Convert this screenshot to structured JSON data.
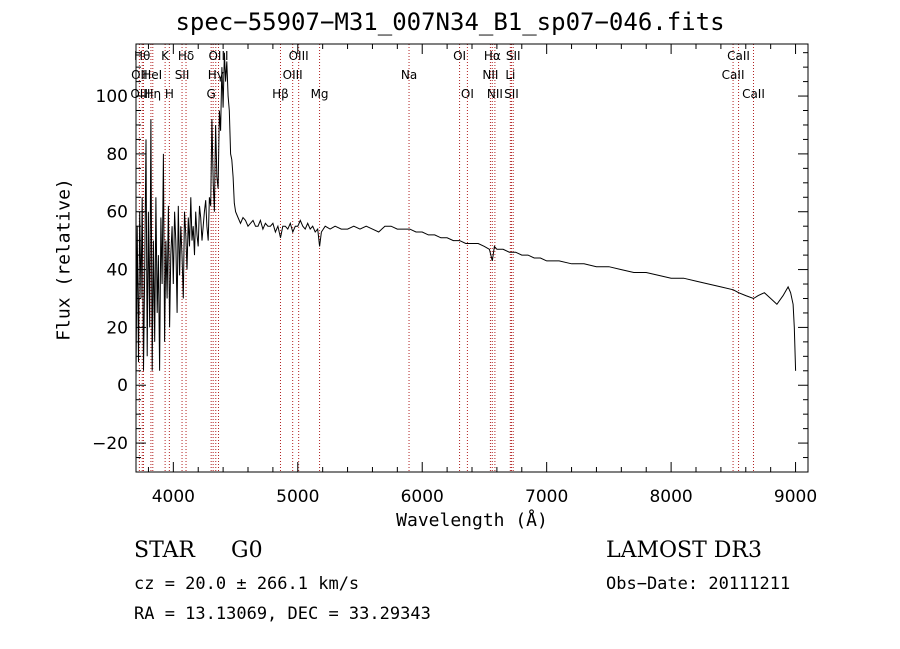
{
  "chart_data": {
    "type": "line",
    "title": "spec−55907−M31_007N34_B1_sp07−046.fits",
    "xlabel": "Wavelength (Å)",
    "ylabel": "Flux (relative)",
    "xlim": [
      3700,
      9100
    ],
    "ylim": [
      -30,
      118
    ],
    "xticks": [
      4000,
      5000,
      6000,
      7000,
      8000,
      9000
    ],
    "yticks": [
      -20,
      0,
      20,
      40,
      60,
      80,
      100
    ],
    "series": [
      {
        "name": "flux",
        "x": [
          3700,
          3710,
          3720,
          3730,
          3740,
          3750,
          3760,
          3770,
          3780,
          3790,
          3800,
          3810,
          3820,
          3830,
          3840,
          3850,
          3860,
          3870,
          3880,
          3890,
          3900,
          3910,
          3920,
          3930,
          3940,
          3950,
          3960,
          3970,
          3980,
          3990,
          4000,
          4010,
          4020,
          4030,
          4040,
          4050,
          4060,
          4070,
          4080,
          4090,
          4100,
          4110,
          4120,
          4130,
          4140,
          4150,
          4160,
          4170,
          4180,
          4190,
          4200,
          4210,
          4220,
          4230,
          4240,
          4250,
          4260,
          4270,
          4280,
          4290,
          4300,
          4310,
          4320,
          4330,
          4340,
          4350,
          4360,
          4370,
          4380,
          4390,
          4400,
          4410,
          4420,
          4430,
          4440,
          4450,
          4460,
          4470,
          4480,
          4490,
          4500,
          4520,
          4540,
          4560,
          4580,
          4600,
          4620,
          4640,
          4660,
          4680,
          4700,
          4720,
          4740,
          4760,
          4780,
          4800,
          4820,
          4840,
          4861,
          4880,
          4900,
          4920,
          4940,
          4960,
          4980,
          5000,
          5020,
          5040,
          5060,
          5080,
          5100,
          5120,
          5140,
          5160,
          5175,
          5190,
          5220,
          5260,
          5300,
          5350,
          5400,
          5450,
          5500,
          5550,
          5600,
          5650,
          5700,
          5750,
          5800,
          5850,
          5900,
          5950,
          6000,
          6050,
          6100,
          6150,
          6200,
          6250,
          6300,
          6350,
          6400,
          6450,
          6500,
          6540,
          6563,
          6580,
          6600,
          6650,
          6700,
          6750,
          6800,
          6850,
          6900,
          6950,
          7000,
          7100,
          7200,
          7300,
          7400,
          7500,
          7600,
          7700,
          7800,
          7900,
          8000,
          8100,
          8200,
          8300,
          8400,
          8500,
          8542,
          8600,
          8662,
          8700,
          8750,
          8800,
          8850,
          8900,
          8940,
          8960,
          8980,
          8990,
          9000
        ],
        "y": [
          2,
          55,
          8,
          60,
          30,
          65,
          5,
          40,
          85,
          10,
          60,
          20,
          92,
          5,
          50,
          15,
          65,
          25,
          45,
          5,
          58,
          35,
          80,
          15,
          50,
          30,
          62,
          20,
          45,
          55,
          35,
          60,
          50,
          25,
          62,
          38,
          55,
          45,
          30,
          60,
          52,
          40,
          58,
          48,
          65,
          50,
          55,
          45,
          60,
          52,
          48,
          62,
          58,
          50,
          55,
          60,
          64,
          55,
          50,
          65,
          62,
          92,
          70,
          60,
          90,
          72,
          68,
          95,
          88,
          110,
          96,
          115,
          105,
          112,
          100,
          95,
          80,
          78,
          72,
          63,
          60,
          58,
          56,
          58,
          57,
          55,
          56,
          57,
          55,
          55,
          57,
          54,
          56,
          55,
          55,
          56,
          53,
          55,
          51,
          55,
          55,
          54,
          56,
          53,
          55,
          55,
          57,
          55,
          54,
          56,
          54,
          55,
          53,
          54,
          48,
          53,
          55,
          54,
          55,
          54,
          54,
          55,
          54,
          55,
          54,
          53,
          55,
          55,
          54,
          54,
          54,
          53,
          53,
          52,
          52,
          51,
          51,
          50,
          50,
          49,
          49,
          49,
          48,
          47,
          43,
          48,
          47,
          47,
          46,
          46,
          45,
          45,
          44,
          44,
          43,
          43,
          42,
          42,
          41,
          41,
          40,
          39,
          39,
          38,
          37,
          37,
          36,
          35,
          34,
          33,
          32,
          31,
          30,
          31,
          32,
          30,
          28,
          31,
          34,
          32,
          28,
          20,
          5
        ]
      }
    ],
    "line_markers": [
      {
        "label": "OII",
        "wave": 3727
      },
      {
        "label": "Hθ",
        "wave": 3750
      },
      {
        "label": "OIII",
        "wave": 3760
      },
      {
        "label": "HeI",
        "wave": 3820
      },
      {
        "label": "Hη",
        "wave": 3835
      },
      {
        "label": "K",
        "wave": 3934
      },
      {
        "label": "SII",
        "wave": 4070
      },
      {
        "label": "Hδ",
        "wave": 4102
      },
      {
        "label": "H",
        "wave": 3968
      },
      {
        "label": "OIII",
        "wave": 4320
      },
      {
        "label": "Hγ",
        "wave": 4341
      },
      {
        "label": "G",
        "wave": 4304
      },
      {
        "label": "OIII",
        "wave": 4363
      },
      {
        "label": "Hβ",
        "wave": 4861
      },
      {
        "label": "OIII",
        "wave": 4959
      },
      {
        "label": "OIII",
        "wave": 5007
      },
      {
        "label": "Mg",
        "wave": 5175
      },
      {
        "label": "Na",
        "wave": 5894
      },
      {
        "label": "OI",
        "wave": 6300
      },
      {
        "label": "OI",
        "wave": 6363
      },
      {
        "label": "Hα",
        "wave": 6563
      },
      {
        "label": "NII",
        "wave": 6548
      },
      {
        "label": "NII",
        "wave": 6584
      },
      {
        "label": "SII",
        "wave": 6717
      },
      {
        "label": "Li",
        "wave": 6708
      },
      {
        "label": "SII",
        "wave": 6731
      },
      {
        "label": "CaII",
        "wave": 8498
      },
      {
        "label": "CaII",
        "wave": 8542
      },
      {
        "label": "CaII",
        "wave": 8662
      }
    ],
    "marker_labels": [
      {
        "text": "Hθ",
        "wave": 3750,
        "row": 0
      },
      {
        "text": "K",
        "wave": 3934,
        "row": 0
      },
      {
        "text": "Hδ",
        "wave": 4102,
        "row": 0
      },
      {
        "text": "OIII",
        "wave": 4363,
        "row": 0
      },
      {
        "text": "OIII",
        "wave": 5007,
        "row": 0
      },
      {
        "text": "OI",
        "wave": 6300,
        "row": 0
      },
      {
        "text": "Hα",
        "wave": 6563,
        "row": 0
      },
      {
        "text": "SII",
        "wave": 6731,
        "row": 0
      },
      {
        "text": "CaII",
        "wave": 8542,
        "row": 0
      },
      {
        "text": "OII",
        "wave": 3727,
        "row": 1
      },
      {
        "text": "HeI",
        "wave": 3830,
        "row": 1
      },
      {
        "text": "SII",
        "wave": 4070,
        "row": 1
      },
      {
        "text": "Hγ",
        "wave": 4341,
        "row": 1
      },
      {
        "text": "OIII",
        "wave": 4959,
        "row": 1
      },
      {
        "text": "Na",
        "wave": 5894,
        "row": 1
      },
      {
        "text": "NII",
        "wave": 6548,
        "row": 1
      },
      {
        "text": "Li",
        "wave": 6708,
        "row": 1
      },
      {
        "text": "CaII",
        "wave": 8498,
        "row": 1
      },
      {
        "text": "OIII",
        "wave": 3735,
        "row": 2
      },
      {
        "text": "Hη",
        "wave": 3835,
        "row": 2
      },
      {
        "text": "H",
        "wave": 3968,
        "row": 2
      },
      {
        "text": "G",
        "wave": 4304,
        "row": 2
      },
      {
        "text": "Hβ",
        "wave": 4861,
        "row": 2
      },
      {
        "text": "Mg",
        "wave": 5175,
        "row": 2
      },
      {
        "text": "OI",
        "wave": 6363,
        "row": 2
      },
      {
        "text": "NII",
        "wave": 6584,
        "row": 2
      },
      {
        "text": "SII",
        "wave": 6717,
        "row": 2
      },
      {
        "text": "CaII",
        "wave": 8662,
        "row": 2
      }
    ]
  },
  "info": {
    "class": "STAR",
    "subclass": "G0",
    "survey": "LAMOST DR3",
    "cz": "cz = 20.0 ± 266.1 km/s",
    "obs_date": "Obs−Date: 20111211",
    "radec": "RA =  13.13069, DEC =  33.29343"
  },
  "colors": {
    "axis": "#000000",
    "spectrum": "#000000",
    "marker": "#b22222"
  }
}
